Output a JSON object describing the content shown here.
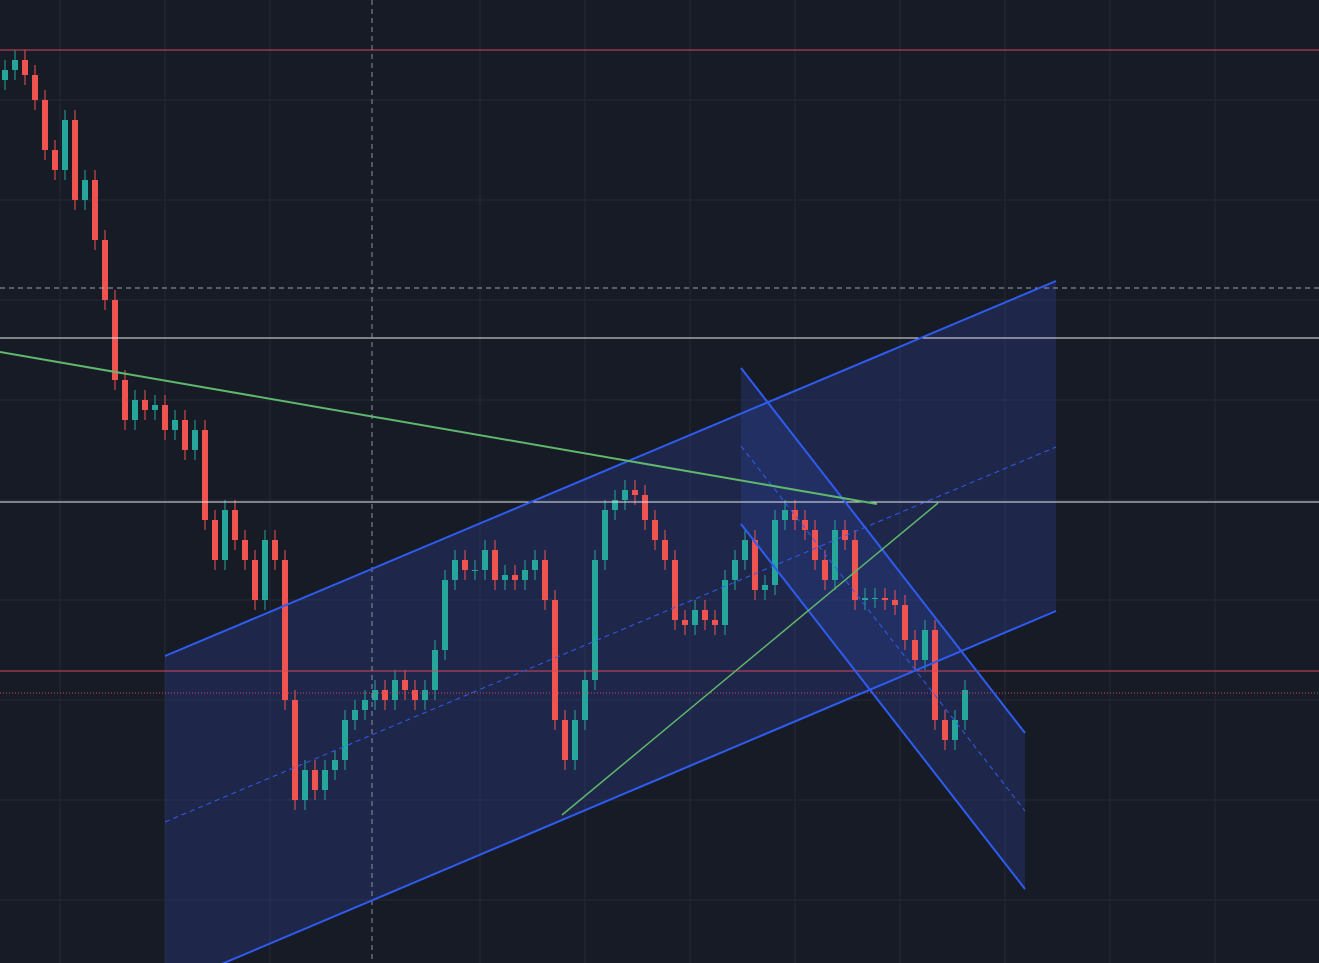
{
  "chart_data": {
    "type": "candlestick",
    "ylim": [
      0,
      963
    ],
    "up_color": "#26a69a",
    "down_color": "#ef5350",
    "open": [
      883,
      893,
      903,
      888,
      863,
      813,
      793,
      843,
      763,
      783,
      723,
      663,
      583,
      543,
      563,
      553,
      558,
      533,
      543,
      513,
      533,
      443,
      403,
      453,
      423,
      403,
      363,
      423,
      403,
      263,
      163,
      193,
      173,
      193,
      203,
      243,
      253,
      263,
      273,
      263,
      283,
      273,
      263,
      273,
      313,
      383,
      403,
      393,
      393,
      413,
      383,
      388,
      383,
      393,
      403,
      363,
      243,
      203,
      243,
      283,
      403,
      453,
      463,
      473,
      468,
      443,
      423,
      403,
      343,
      338,
      353,
      343,
      338,
      383,
      403,
      423,
      373,
      378,
      443,
      453,
      443,
      433,
      403,
      383,
      433,
      423,
      363,
      365,
      365,
      363,
      358,
      323,
      303,
      333,
      243,
      223,
      243
    ],
    "high": [
      903,
      913,
      913,
      898,
      873,
      823,
      853,
      853,
      793,
      793,
      733,
      673,
      593,
      573,
      573,
      568,
      568,
      553,
      553,
      543,
      543,
      453,
      463,
      463,
      433,
      413,
      433,
      433,
      413,
      273,
      203,
      203,
      203,
      213,
      253,
      263,
      273,
      283,
      283,
      293,
      293,
      283,
      283,
      323,
      393,
      413,
      413,
      403,
      423,
      423,
      398,
      398,
      403,
      413,
      413,
      373,
      253,
      253,
      293,
      413,
      463,
      473,
      483,
      483,
      478,
      453,
      433,
      413,
      353,
      363,
      363,
      353,
      393,
      413,
      433,
      433,
      388,
      453,
      463,
      463,
      453,
      443,
      413,
      443,
      443,
      433,
      375,
      375,
      375,
      373,
      368,
      333,
      343,
      343,
      253,
      253,
      283
    ],
    "low": [
      873,
      883,
      878,
      853,
      803,
      783,
      783,
      753,
      753,
      713,
      653,
      573,
      533,
      533,
      543,
      543,
      523,
      523,
      503,
      503,
      433,
      393,
      393,
      413,
      393,
      353,
      353,
      393,
      253,
      153,
      153,
      163,
      163,
      183,
      193,
      233,
      243,
      253,
      253,
      253,
      263,
      253,
      253,
      263,
      303,
      373,
      383,
      383,
      383,
      373,
      373,
      373,
      373,
      383,
      353,
      233,
      193,
      193,
      233,
      273,
      393,
      443,
      453,
      458,
      433,
      413,
      393,
      333,
      328,
      328,
      333,
      328,
      328,
      373,
      393,
      363,
      363,
      368,
      433,
      433,
      423,
      393,
      373,
      373,
      413,
      353,
      353,
      355,
      353,
      348,
      313,
      293,
      293,
      233,
      213,
      213,
      233
    ],
    "close": [
      893,
      903,
      888,
      863,
      813,
      793,
      843,
      763,
      783,
      723,
      663,
      583,
      543,
      563,
      553,
      558,
      533,
      543,
      513,
      533,
      443,
      403,
      453,
      423,
      403,
      363,
      423,
      403,
      263,
      163,
      193,
      173,
      193,
      203,
      243,
      253,
      263,
      273,
      263,
      283,
      273,
      263,
      273,
      313,
      383,
      403,
      393,
      393,
      413,
      383,
      388,
      383,
      393,
      403,
      363,
      243,
      203,
      243,
      283,
      403,
      453,
      463,
      473,
      468,
      443,
      423,
      403,
      343,
      338,
      353,
      343,
      338,
      383,
      403,
      423,
      373,
      378,
      443,
      453,
      443,
      433,
      403,
      383,
      433,
      423,
      363,
      365,
      365,
      363,
      358,
      323,
      303,
      333,
      243,
      223,
      243,
      273
    ]
  }
}
